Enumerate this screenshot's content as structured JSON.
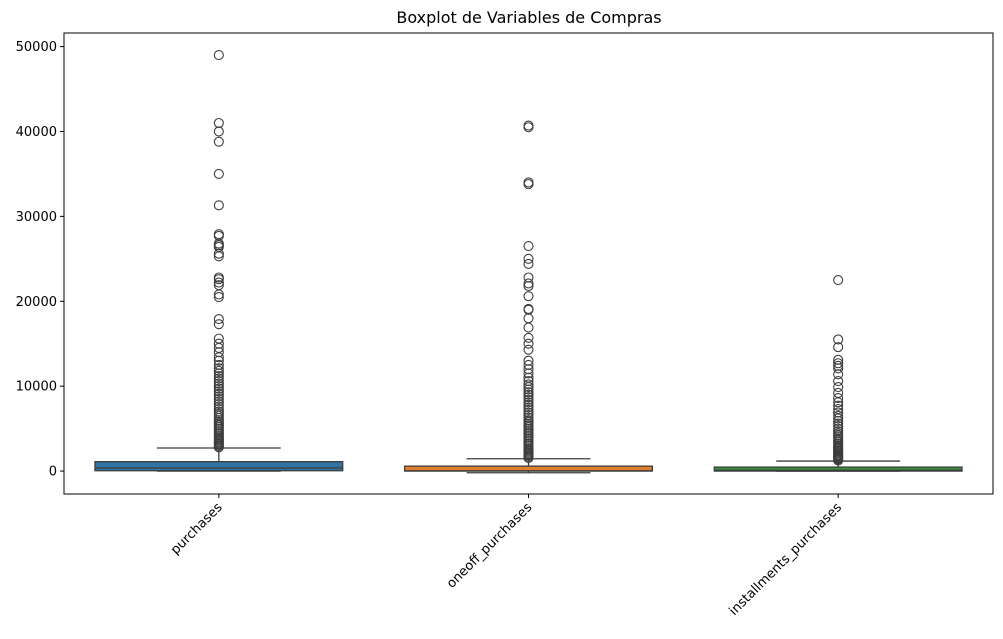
{
  "chart_data": {
    "type": "boxplot",
    "title": "Boxplot de Variables de Compras",
    "xlabel": "",
    "ylabel": "",
    "ylim": [
      -2700,
      51600
    ],
    "yticks": [
      0,
      10000,
      20000,
      30000,
      40000,
      50000
    ],
    "ytick_labels": [
      "0",
      "10000",
      "20000",
      "30000",
      "40000",
      "50000"
    ],
    "grid": false,
    "xtick_rotation": 45,
    "categories": [
      "purchases",
      "oneoff_purchases",
      "installments_purchases"
    ],
    "colors": [
      "#3274a1",
      "#e1812c",
      "#3a923a"
    ],
    "boxes": [
      {
        "name": "purchases",
        "whisker_low": 0,
        "q1": 40,
        "median": 360,
        "q3": 1110,
        "whisker_high": 2720,
        "outliers": [
          2800,
          2950,
          3100,
          3250,
          3400,
          3550,
          3700,
          3850,
          4000,
          4200,
          4400,
          4600,
          4800,
          5000,
          5200,
          5400,
          5600,
          5800,
          6000,
          6250,
          6500,
          6750,
          7000,
          7300,
          7600,
          7900,
          8200,
          8500,
          8800,
          9100,
          9400,
          9700,
          10000,
          10300,
          10600,
          10900,
          11200,
          11500,
          11800,
          12100,
          12500,
          13000,
          13400,
          14000,
          14500,
          15000,
          15600,
          17300,
          17900,
          20500,
          20800,
          21900,
          22200,
          22600,
          22800,
          25300,
          25600,
          26400,
          26600,
          26800,
          27700,
          27900,
          31300,
          35000,
          38800,
          40000,
          41000,
          49000
        ]
      },
      {
        "name": "oneoff_purchases",
        "whisker_low": -200,
        "q1": 0,
        "median": 40,
        "q3": 580,
        "whisker_high": 1450,
        "outliers": [
          1550,
          1700,
          1850,
          2000,
          2150,
          2300,
          2450,
          2600,
          2800,
          3000,
          3200,
          3400,
          3600,
          3800,
          4000,
          4200,
          4400,
          4600,
          4800,
          5000,
          5200,
          5400,
          5600,
          5800,
          6000,
          6300,
          6600,
          6900,
          7200,
          7500,
          7800,
          8100,
          8400,
          8700,
          9000,
          9300,
          9600,
          9900,
          10200,
          10600,
          11000,
          11500,
          12000,
          12500,
          13000,
          14300,
          15000,
          15700,
          16900,
          18000,
          19000,
          19100,
          20600,
          21800,
          22100,
          22800,
          24400,
          25000,
          26500,
          33800,
          34000,
          40500,
          40700
        ]
      },
      {
        "name": "installments_purchases",
        "whisker_low": 0,
        "q1": 0,
        "median": 90,
        "q3": 470,
        "whisker_high": 1180,
        "outliers": [
          1250,
          1350,
          1450,
          1550,
          1650,
          1750,
          1850,
          1950,
          2100,
          2250,
          2400,
          2550,
          2700,
          2850,
          3000,
          3200,
          3400,
          3600,
          3800,
          4000,
          4200,
          4450,
          4700,
          5000,
          5300,
          5600,
          5900,
          6200,
          6500,
          6900,
          7300,
          7700,
          8100,
          8600,
          9200,
          9900,
          10600,
          11400,
          12100,
          12400,
          12700,
          13100,
          14600,
          15500,
          22500
        ]
      }
    ]
  }
}
